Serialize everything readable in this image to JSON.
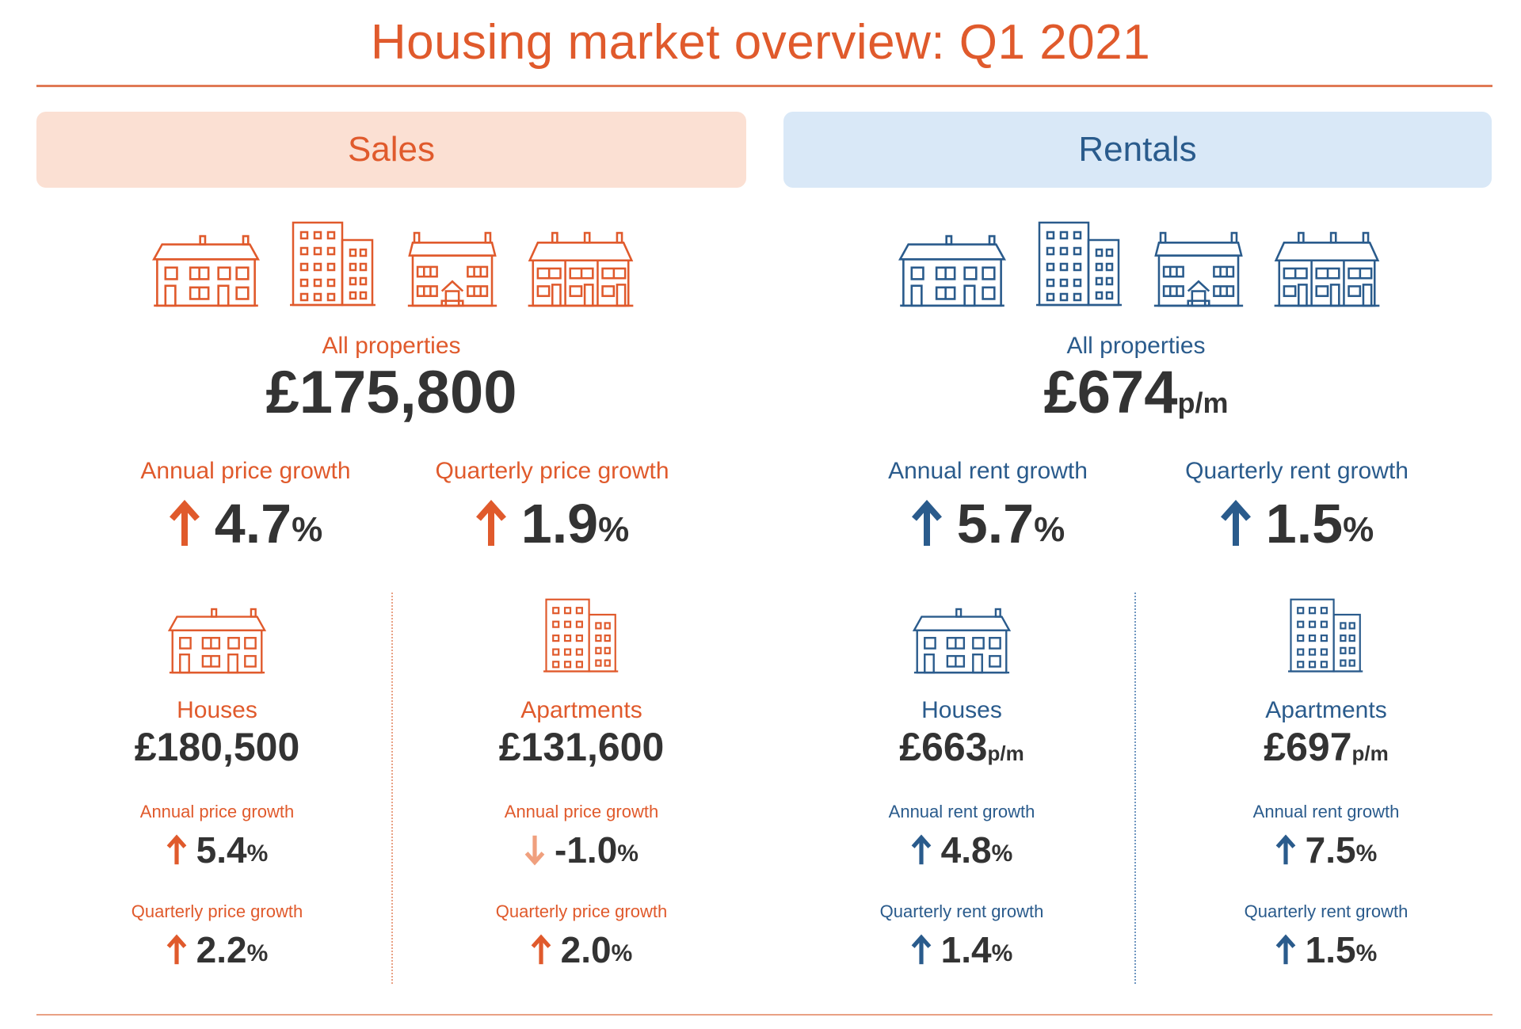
{
  "title": "Housing market overview: Q1 2021",
  "colors": {
    "sales": "#e05a2c",
    "rentals": "#2a5b8c",
    "sales_bg": "#fbe0d3",
    "rentals_bg": "#d9e8f7",
    "down_arrow": "#f0a07e"
  },
  "sales": {
    "heading": "Sales",
    "icons": [
      "detached-house-icon",
      "apartment-building-icon",
      "semi-detached-house-icon",
      "terraced-house-icon"
    ],
    "all_label": "All properties",
    "all_value": "£175,800",
    "annual_label": "Annual price growth",
    "annual_value": "4.7",
    "annual_direction": "up",
    "quarterly_label": "Quarterly price growth",
    "quarterly_value": "1.9",
    "quarterly_direction": "up",
    "pct": "%",
    "houses": {
      "label": "Houses",
      "value": "£180,500",
      "annual_label": "Annual price growth",
      "annual_value": "5.4",
      "annual_direction": "up",
      "quarterly_label": "Quarterly price growth",
      "quarterly_value": "2.2",
      "quarterly_direction": "up"
    },
    "apartments": {
      "label": "Apartments",
      "value": "£131,600",
      "annual_label": "Annual price growth",
      "annual_value": "-1.0",
      "annual_direction": "down",
      "quarterly_label": "Quarterly price growth",
      "quarterly_value": "2.0",
      "quarterly_direction": "up"
    }
  },
  "rentals": {
    "heading": "Rentals",
    "icons": [
      "detached-house-icon",
      "apartment-building-icon",
      "semi-detached-house-icon",
      "terraced-house-icon"
    ],
    "all_label": "All properties",
    "all_value": "£674",
    "unit": "p/m",
    "annual_label": "Annual rent growth",
    "annual_value": "5.7",
    "annual_direction": "up",
    "quarterly_label": "Quarterly rent growth",
    "quarterly_value": "1.5",
    "quarterly_direction": "up",
    "pct": "%",
    "houses": {
      "label": "Houses",
      "value": "£663",
      "unit": "p/m",
      "annual_label": "Annual rent growth",
      "annual_value": "4.8",
      "annual_direction": "up",
      "quarterly_label": "Quarterly rent growth",
      "quarterly_value": "1.4",
      "quarterly_direction": "up"
    },
    "apartments": {
      "label": "Apartments",
      "value": "£697",
      "unit": "p/m",
      "annual_label": "Annual rent growth",
      "annual_value": "7.5",
      "annual_direction": "up",
      "quarterly_label": "Quarterly rent growth",
      "quarterly_value": "1.5",
      "quarterly_direction": "up"
    }
  }
}
